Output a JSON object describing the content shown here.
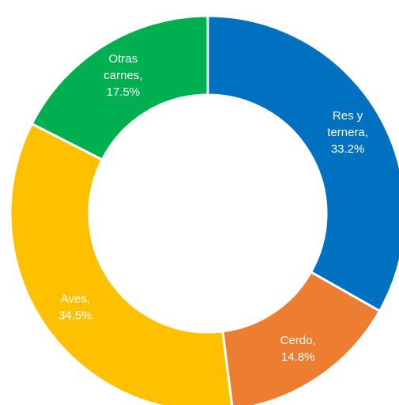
{
  "chart_data": {
    "type": "pie",
    "variant": "donut",
    "start": "12 o'clock",
    "direction": "clockwise",
    "slice_separator_color": "#ffffff",
    "legend": "none",
    "slices": [
      {
        "label_lines": [
          "Res y",
          "ternera,",
          "33.2%"
        ],
        "value": 33.2,
        "color": "#0070C0"
      },
      {
        "label_lines": [
          "Cerdo,",
          "14.8%"
        ],
        "value": 14.8,
        "color": "#ED7D31"
      },
      {
        "label_lines": [
          "Aves,",
          "34.5%"
        ],
        "value": 34.5,
        "color": "#FFC000"
      },
      {
        "label_lines": [
          "Otras",
          "carnes,",
          "17.5%"
        ],
        "value": 17.5,
        "color": "#00B050"
      }
    ]
  }
}
